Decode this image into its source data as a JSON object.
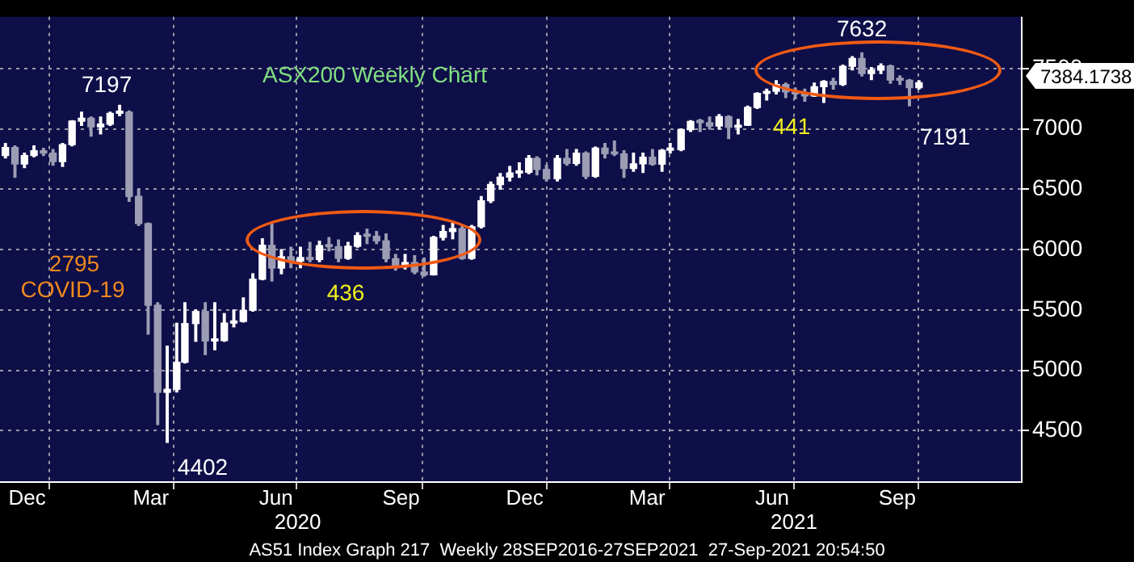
{
  "chart_data": {
    "type": "candlestick",
    "title": "ASX200 Weekly Chart",
    "colors": [
      "#ffffff",
      "#9c9cb4",
      "#ffffff",
      "#ffffff",
      "#9c9cb4",
      "#9c9cb4",
      "#ffffff",
      "#ffffff",
      "#ffffff",
      "#9c9cb4",
      "#ffffff",
      "#ffffff",
      "#ffffff",
      "#9c9cb4",
      "#9c9cb4",
      "#9c9cb4",
      "#9c9cb4",
      "#ffffff",
      "#ffffff",
      "#ffffff",
      "#ffffff",
      "#9c9cb4",
      "#ffffff",
      "#ffffff",
      "#ffffff",
      "#ffffff",
      "#ffffff",
      "#ffffff",
      "#9c9cb4",
      "#ffffff",
      "#9c9cb4",
      "#ffffff",
      "#9c9cb4",
      "#ffffff",
      "#9c9cb4",
      "#9c9cb4",
      "#ffffff",
      "#ffffff",
      "#9c9cb4",
      "#9c9cb4",
      "#9c9cb4",
      "#9c9cb4",
      "#ffffff",
      "#9c9cb4",
      "#9c9cb4",
      "#ffffff",
      "#ffffff",
      "#ffffff",
      "#9c9cb4",
      "#ffffff",
      "#ffffff",
      "#ffffff",
      "#ffffff",
      "#ffffff",
      "#ffffff",
      "#ffffff",
      "#9c9cb4",
      "#9c9cb4",
      "#ffffff",
      "#9c9cb4",
      "#ffffff",
      "#9c9cb4",
      "#ffffff",
      "#9c9cb4",
      "#9c9cb4",
      "#9c9cb4",
      "#ffffff",
      "#ffffff",
      "#9c9cb4",
      "#ffffff",
      "#ffffff",
      "#ffffff",
      "#ffffff",
      "#9c9cb4",
      "#9c9cb4",
      "#ffffff",
      "#9c9cb4",
      "#ffffff",
      "#ffffff",
      "#ffffff",
      "#ffffff",
      "#ffffff",
      "#9c9cb4",
      "#9c9cb4",
      "#9c9cb4",
      "#ffffff",
      "#ffffff",
      "#9c9cb4",
      "#ffffff",
      "#ffffff",
      "#9c9cb4",
      "#ffffff",
      "#ffffff",
      "#9c9cb4",
      "#9c9cb4",
      "#9c9cb4",
      "#ffffff"
    ],
    "x": [
      "2019-11-29",
      "2019-12-06",
      "2019-12-13",
      "2019-12-20",
      "2019-12-27",
      "2020-01-03",
      "2020-01-10",
      "2020-01-17",
      "2020-01-24",
      "2020-01-31",
      "2020-02-07",
      "2020-02-14",
      "2020-02-21",
      "2020-02-28",
      "2020-03-06",
      "2020-03-13",
      "2020-03-20",
      "2020-03-27",
      "2020-04-03",
      "2020-04-09",
      "2020-04-17",
      "2020-04-24",
      "2020-05-01",
      "2020-05-08",
      "2020-05-15",
      "2020-05-22",
      "2020-05-29",
      "2020-06-05",
      "2020-06-12",
      "2020-06-19",
      "2020-06-26",
      "2020-07-03",
      "2020-07-10",
      "2020-07-17",
      "2020-07-24",
      "2020-07-31",
      "2020-08-07",
      "2020-08-14",
      "2020-08-21",
      "2020-08-28",
      "2020-09-04",
      "2020-09-11",
      "2020-09-18",
      "2020-09-25",
      "2020-10-02",
      "2020-10-09",
      "2020-10-16",
      "2020-10-23",
      "2020-10-30",
      "2020-11-06",
      "2020-11-13",
      "2020-11-20",
      "2020-11-27",
      "2020-12-04",
      "2020-12-11",
      "2020-12-18",
      "2020-12-24",
      "2020-12-31",
      "2021-01-08",
      "2021-01-15",
      "2021-01-22",
      "2021-01-29",
      "2021-02-05",
      "2021-02-12",
      "2021-02-19",
      "2021-02-26",
      "2021-03-05",
      "2021-03-12",
      "2021-03-19",
      "2021-03-26",
      "2021-04-01",
      "2021-04-09",
      "2021-04-16",
      "2021-04-23",
      "2021-04-30",
      "2021-05-07",
      "2021-05-14",
      "2021-05-21",
      "2021-05-28",
      "2021-06-04",
      "2021-06-11",
      "2021-06-18",
      "2021-06-25",
      "2021-07-02",
      "2021-07-09",
      "2021-07-16",
      "2021-07-23",
      "2021-07-30",
      "2021-08-06",
      "2021-08-13",
      "2021-08-20",
      "2021-08-27",
      "2021-09-03",
      "2021-09-10",
      "2021-09-17",
      "2021-09-24",
      "2021-10-01"
    ],
    "ohlc": [
      [
        6780,
        6880,
        6760,
        6846
      ],
      [
        6846,
        6860,
        6600,
        6710
      ],
      [
        6710,
        6800,
        6680,
        6780
      ],
      [
        6780,
        6860,
        6770,
        6820
      ],
      [
        6820,
        6840,
        6780,
        6800
      ],
      [
        6800,
        6830,
        6700,
        6730
      ],
      [
        6730,
        6880,
        6690,
        6870
      ],
      [
        6870,
        7070,
        6860,
        7065
      ],
      [
        7065,
        7140,
        7030,
        7090
      ],
      [
        7090,
        7100,
        6940,
        7017
      ],
      [
        7017,
        7100,
        6960,
        7040
      ],
      [
        7040,
        7140,
        7030,
        7130
      ],
      [
        7130,
        7197,
        7110,
        7139
      ],
      [
        7139,
        7150,
        6400,
        6441
      ],
      [
        6441,
        6500,
        6200,
        6216
      ],
      [
        6216,
        6220,
        5300,
        5539
      ],
      [
        5539,
        5560,
        4550,
        4817
      ],
      [
        4817,
        5200,
        4402,
        4842
      ],
      [
        4842,
        5390,
        4820,
        5067
      ],
      [
        5067,
        5560,
        5060,
        5387
      ],
      [
        5387,
        5500,
        5240,
        5487
      ],
      [
        5487,
        5560,
        5130,
        5243
      ],
      [
        5243,
        5560,
        5170,
        5246
      ],
      [
        5246,
        5470,
        5240,
        5391
      ],
      [
        5391,
        5500,
        5360,
        5405
      ],
      [
        5405,
        5600,
        5400,
        5497
      ],
      [
        5497,
        5800,
        5490,
        5755
      ],
      [
        5755,
        6090,
        5750,
        6036
      ],
      [
        6036,
        6210,
        5740,
        5847
      ],
      [
        5847,
        6000,
        5800,
        5941
      ],
      [
        5941,
        6020,
        5850,
        5905
      ],
      [
        5905,
        6020,
        5850,
        5935
      ],
      [
        5935,
        6060,
        5900,
        5918
      ],
      [
        5918,
        6070,
        5900,
        6033
      ],
      [
        6033,
        6100,
        5990,
        6024
      ],
      [
        6024,
        6080,
        5900,
        5928
      ],
      [
        5928,
        6060,
        5920,
        6028
      ],
      [
        6028,
        6140,
        6020,
        6116
      ],
      [
        6116,
        6170,
        6050,
        6111
      ],
      [
        6111,
        6150,
        6050,
        6073
      ],
      [
        6073,
        6130,
        5900,
        5925
      ],
      [
        5925,
        5960,
        5830,
        5859
      ],
      [
        5859,
        5960,
        5840,
        5893
      ],
      [
        5893,
        5950,
        5800,
        5815
      ],
      [
        5815,
        5930,
        5780,
        5791
      ],
      [
        5791,
        6110,
        5790,
        6102
      ],
      [
        6102,
        6200,
        6080,
        6150
      ],
      [
        6150,
        6220,
        6090,
        6174
      ],
      [
        6174,
        6200,
        5920,
        5927
      ],
      [
        5927,
        6200,
        5920,
        6190
      ],
      [
        6190,
        6440,
        6180,
        6405
      ],
      [
        6405,
        6560,
        6390,
        6540
      ],
      [
        6540,
        6630,
        6500,
        6601
      ],
      [
        6601,
        6690,
        6570,
        6635
      ],
      [
        6635,
        6720,
        6600,
        6642
      ],
      [
        6642,
        6780,
        6630,
        6756
      ],
      [
        6756,
        6770,
        6620,
        6664
      ],
      [
        6664,
        6700,
        6570,
        6587
      ],
      [
        6587,
        6780,
        6570,
        6757
      ],
      [
        6757,
        6830,
        6700,
        6715
      ],
      [
        6715,
        6830,
        6700,
        6800
      ],
      [
        6800,
        6810,
        6590,
        6607
      ],
      [
        6607,
        6850,
        6600,
        6841
      ],
      [
        6841,
        6880,
        6760,
        6795
      ],
      [
        6795,
        6900,
        6780,
        6793
      ],
      [
        6793,
        6820,
        6600,
        6673
      ],
      [
        6673,
        6800,
        6650,
        6711
      ],
      [
        6711,
        6800,
        6640,
        6767
      ],
      [
        6767,
        6830,
        6700,
        6708
      ],
      [
        6708,
        6830,
        6650,
        6824
      ],
      [
        6824,
        6880,
        6800,
        6828
      ],
      [
        6828,
        7000,
        6820,
        6995
      ],
      [
        6995,
        7070,
        6980,
        7063
      ],
      [
        7063,
        7080,
        6980,
        7053
      ],
      [
        7053,
        7100,
        7000,
        7025
      ],
      [
        7025,
        7120,
        7000,
        7103
      ],
      [
        7103,
        7110,
        6920,
        7014
      ],
      [
        7014,
        7080,
        6960,
        7031
      ],
      [
        7031,
        7190,
        7030,
        7179
      ],
      [
        7179,
        7300,
        7170,
        7295
      ],
      [
        7295,
        7330,
        7240,
        7312
      ],
      [
        7312,
        7400,
        7290,
        7368
      ],
      [
        7368,
        7380,
        7260,
        7308
      ],
      [
        7308,
        7340,
        7250,
        7290
      ],
      [
        7290,
        7330,
        7230,
        7273
      ],
      [
        7273,
        7380,
        7270,
        7351
      ],
      [
        7351,
        7400,
        7220,
        7394
      ],
      [
        7394,
        7420,
        7330,
        7370
      ],
      [
        7370,
        7530,
        7360,
        7520
      ],
      [
        7520,
        7600,
        7490,
        7584
      ],
      [
        7584,
        7632,
        7440,
        7460
      ],
      [
        7460,
        7510,
        7410,
        7488
      ],
      [
        7488,
        7540,
        7460,
        7522
      ],
      [
        7522,
        7530,
        7380,
        7406
      ],
      [
        7406,
        7440,
        7370,
        7404
      ],
      [
        7404,
        7410,
        7191,
        7342
      ],
      [
        7342,
        7400,
        7330,
        7384.1738
      ]
    ],
    "xlim": [
      "2019-11-25",
      "2021-12-15"
    ],
    "xticks": [
      {
        "value": "2019-12-15",
        "label": "Dec"
      },
      {
        "value": "2019-12-31",
        "label": null
      },
      {
        "value": "2020-03-15",
        "label": "Mar"
      },
      {
        "value": "2020-03-31",
        "label": null
      },
      {
        "value": "2020-06-15",
        "label": "Jun"
      },
      {
        "value": "2020-06-30",
        "label": null
      },
      {
        "value": "2020-09-15",
        "label": "Sep"
      },
      {
        "value": "2020-09-30",
        "label": null
      },
      {
        "value": "2020-12-15",
        "label": "Dec"
      },
      {
        "value": "2020-12-31",
        "label": null
      },
      {
        "value": "2021-03-15",
        "label": "Mar"
      },
      {
        "value": "2021-03-31",
        "label": null
      },
      {
        "value": "2021-06-15",
        "label": "Jun"
      },
      {
        "value": "2021-06-30",
        "label": null
      },
      {
        "value": "2021-09-15",
        "label": "Sep"
      },
      {
        "value": "2021-09-30",
        "label": null
      }
    ],
    "x2lim": [
      "2019-11-25",
      "2021-12-15"
    ],
    "x2ticks": [
      {
        "value": "2020-07-01",
        "label": "2020"
      },
      {
        "value": "2021-07-01",
        "label": "2021"
      }
    ],
    "ylim": [
      4080,
      7930
    ],
    "yticks": [
      4500,
      5000,
      5500,
      6000,
      6500,
      7000,
      7500
    ],
    "grid": true,
    "legend": false,
    "annotations": [
      {
        "text": "7197",
        "x": "2020-02-21",
        "y": 7197
      },
      {
        "text": "4402",
        "x": "2020-03-27",
        "y": 4402
      },
      {
        "text": "7632",
        "x": "2021-08-20",
        "y": 7632
      },
      {
        "text": "7191",
        "x": "2021-09-24",
        "y": 7191
      },
      "7384.1738",
      "2795",
      "COVID-19",
      "436",
      "441",
      "AS51 Index Graph 217  Weekly 28SEP2016-27SEP2021  27-Sep-2021 20:54:50"
    ]
  }
}
